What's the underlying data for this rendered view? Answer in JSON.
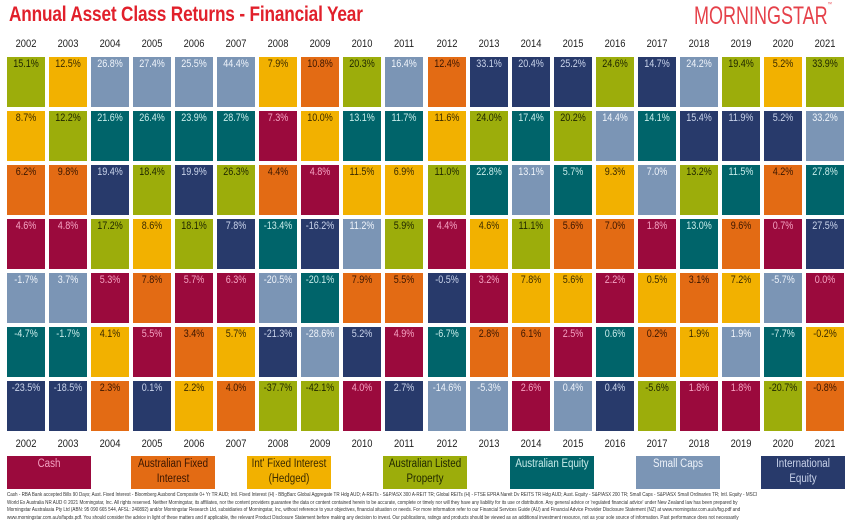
{
  "header": {
    "title": "Annual Asset Class Returns - Financial Year",
    "logo": "MORNINGSTAR"
  },
  "classes": {
    "C": {
      "label": "Cash",
      "color": "#9b0a3d",
      "text": "#f5a3c3"
    },
    "AFI": {
      "label": "Australian Fixed Interest",
      "color": "#e36b14",
      "text": "#3a1600"
    },
    "IFI": {
      "label": "Int' Fixed Interest (Hedged)",
      "color": "#f2b100",
      "text": "#3a2a00"
    },
    "ALP": {
      "label": "Australian Listed Property",
      "color": "#9cad0b",
      "text": "#1f2600"
    },
    "AE": {
      "label": "Australian Equity",
      "color": "#00646a",
      "text": "#c8ecea"
    },
    "SC": {
      "label": "Small Caps",
      "color": "#7b95b5",
      "text": "#eef3fa"
    },
    "IE": {
      "label": "International Equity",
      "color": "#283a6b",
      "text": "#c9d3ea"
    }
  },
  "legend_order": [
    "C",
    "AFI",
    "IFI",
    "ALP",
    "AE",
    "SC",
    "IE"
  ],
  "legend_lines": {
    "C": [
      "Cash"
    ],
    "AFI": [
      "Australian Fixed",
      "Interest"
    ],
    "IFI": [
      "Int' Fixed Interest",
      "(Hedged)"
    ],
    "ALP": [
      "Australian Listed",
      "Property"
    ],
    "AE": [
      "Australian Equity"
    ],
    "SC": [
      "Small Caps"
    ],
    "IE": [
      "International",
      "Equity"
    ]
  },
  "chart_data": {
    "type": "table",
    "title": "Annual Asset Class Returns - Financial Year",
    "years": [
      "2002",
      "2003",
      "2004",
      "2005",
      "2006",
      "2007",
      "2008",
      "2009",
      "2010",
      "2011",
      "2012",
      "2013",
      "2014",
      "2015",
      "2016",
      "2017",
      "2018",
      "2019",
      "2020",
      "2021"
    ],
    "columns": [
      [
        [
          "15.1%",
          "ALP"
        ],
        [
          "8.7%",
          "IFI"
        ],
        [
          "6.2%",
          "AFI"
        ],
        [
          "4.6%",
          "C"
        ],
        [
          "-1.7%",
          "SC"
        ],
        [
          "-4.7%",
          "AE"
        ],
        [
          "-23.5%",
          "IE"
        ]
      ],
      [
        [
          "12.5%",
          "IFI"
        ],
        [
          "12.2%",
          "ALP"
        ],
        [
          "9.8%",
          "AFI"
        ],
        [
          "4.8%",
          "C"
        ],
        [
          "3.7%",
          "SC"
        ],
        [
          "-1.7%",
          "AE"
        ],
        [
          "-18.5%",
          "IE"
        ]
      ],
      [
        [
          "26.8%",
          "SC"
        ],
        [
          "21.6%",
          "AE"
        ],
        [
          "19.4%",
          "IE"
        ],
        [
          "17.2%",
          "ALP"
        ],
        [
          "5.3%",
          "C"
        ],
        [
          "4.1%",
          "IFI"
        ],
        [
          "2.3%",
          "AFI"
        ]
      ],
      [
        [
          "27.4%",
          "SC"
        ],
        [
          "26.4%",
          "AE"
        ],
        [
          "18.4%",
          "ALP"
        ],
        [
          "8.6%",
          "IFI"
        ],
        [
          "7.8%",
          "AFI"
        ],
        [
          "5.5%",
          "C"
        ],
        [
          "0.1%",
          "IE"
        ]
      ],
      [
        [
          "25.5%",
          "SC"
        ],
        [
          "23.9%",
          "AE"
        ],
        [
          "19.9%",
          "IE"
        ],
        [
          "18.1%",
          "ALP"
        ],
        [
          "5.7%",
          "C"
        ],
        [
          "3.4%",
          "AFI"
        ],
        [
          "2.2%",
          "IFI"
        ]
      ],
      [
        [
          "44.4%",
          "SC"
        ],
        [
          "28.7%",
          "AE"
        ],
        [
          "26.3%",
          "ALP"
        ],
        [
          "7.8%",
          "IE"
        ],
        [
          "6.3%",
          "C"
        ],
        [
          "5.7%",
          "IFI"
        ],
        [
          "4.0%",
          "AFI"
        ]
      ],
      [
        [
          "7.9%",
          "IFI"
        ],
        [
          "7.3%",
          "C"
        ],
        [
          "4.4%",
          "AFI"
        ],
        [
          "-13.4%",
          "AE"
        ],
        [
          "-20.5%",
          "SC"
        ],
        [
          "-21.3%",
          "IE"
        ],
        [
          "-37.7%",
          "ALP"
        ]
      ],
      [
        [
          "10.8%",
          "AFI"
        ],
        [
          "10.0%",
          "IFI"
        ],
        [
          "4.8%",
          "C"
        ],
        [
          "-16.2%",
          "IE"
        ],
        [
          "-20.1%",
          "AE"
        ],
        [
          "-28.6%",
          "SC"
        ],
        [
          "-42.1%",
          "ALP"
        ]
      ],
      [
        [
          "20.3%",
          "ALP"
        ],
        [
          "13.1%",
          "AE"
        ],
        [
          "11.5%",
          "IFI"
        ],
        [
          "11.2%",
          "SC"
        ],
        [
          "7.9%",
          "AFI"
        ],
        [
          "5.2%",
          "IE"
        ],
        [
          "4.0%",
          "C"
        ]
      ],
      [
        [
          "16.4%",
          "SC"
        ],
        [
          "11.7%",
          "AE"
        ],
        [
          "6.9%",
          "IFI"
        ],
        [
          "5.9%",
          "ALP"
        ],
        [
          "5.5%",
          "AFI"
        ],
        [
          "4.9%",
          "C"
        ],
        [
          "2.7%",
          "IE"
        ]
      ],
      [
        [
          "12.4%",
          "AFI"
        ],
        [
          "11.6%",
          "IFI"
        ],
        [
          "11.0%",
          "ALP"
        ],
        [
          "4.4%",
          "C"
        ],
        [
          "-0.5%",
          "IE"
        ],
        [
          "-6.7%",
          "AE"
        ],
        [
          "-14.6%",
          "SC"
        ]
      ],
      [
        [
          "33.1%",
          "IE"
        ],
        [
          "24.0%",
          "ALP"
        ],
        [
          "22.8%",
          "AE"
        ],
        [
          "4.6%",
          "IFI"
        ],
        [
          "3.2%",
          "C"
        ],
        [
          "2.8%",
          "AFI"
        ],
        [
          "-5.3%",
          "SC"
        ]
      ],
      [
        [
          "20.4%",
          "IE"
        ],
        [
          "17.4%",
          "AE"
        ],
        [
          "13.1%",
          "SC"
        ],
        [
          "11.1%",
          "ALP"
        ],
        [
          "7.8%",
          "IFI"
        ],
        [
          "6.1%",
          "AFI"
        ],
        [
          "2.6%",
          "C"
        ]
      ],
      [
        [
          "25.2%",
          "IE"
        ],
        [
          "20.2%",
          "ALP"
        ],
        [
          "5.7%",
          "AE"
        ],
        [
          "5.6%",
          "AFI"
        ],
        [
          "5.6%",
          "IFI"
        ],
        [
          "2.5%",
          "C"
        ],
        [
          "0.4%",
          "SC"
        ]
      ],
      [
        [
          "24.6%",
          "ALP"
        ],
        [
          "14.4%",
          "SC"
        ],
        [
          "9.3%",
          "IFI"
        ],
        [
          "7.0%",
          "AFI"
        ],
        [
          "2.2%",
          "C"
        ],
        [
          "0.6%",
          "AE"
        ],
        [
          "0.4%",
          "IE"
        ]
      ],
      [
        [
          "14.7%",
          "IE"
        ],
        [
          "14.1%",
          "AE"
        ],
        [
          "7.0%",
          "SC"
        ],
        [
          "1.8%",
          "C"
        ],
        [
          "0.5%",
          "IFI"
        ],
        [
          "0.2%",
          "AFI"
        ],
        [
          "-5.6%",
          "ALP"
        ]
      ],
      [
        [
          "24.2%",
          "SC"
        ],
        [
          "15.4%",
          "IE"
        ],
        [
          "13.2%",
          "ALP"
        ],
        [
          "13.0%",
          "AE"
        ],
        [
          "3.1%",
          "AFI"
        ],
        [
          "1.9%",
          "IFI"
        ],
        [
          "1.8%",
          "C"
        ]
      ],
      [
        [
          "19.4%",
          "ALP"
        ],
        [
          "11.9%",
          "IE"
        ],
        [
          "11.5%",
          "AE"
        ],
        [
          "9.6%",
          "AFI"
        ],
        [
          "7.2%",
          "IFI"
        ],
        [
          "1.9%",
          "SC"
        ],
        [
          "1.8%",
          "C"
        ]
      ],
      [
        [
          "5.2%",
          "IFI"
        ],
        [
          "5.2%",
          "IE"
        ],
        [
          "4.2%",
          "AFI"
        ],
        [
          "0.7%",
          "C"
        ],
        [
          "-5.7%",
          "SC"
        ],
        [
          "-7.7%",
          "AE"
        ],
        [
          "-20.7%",
          "ALP"
        ]
      ],
      [
        [
          "33.9%",
          "ALP"
        ],
        [
          "33.2%",
          "SC"
        ],
        [
          "27.8%",
          "AE"
        ],
        [
          "27.5%",
          "IE"
        ],
        [
          "0.0%",
          "C"
        ],
        [
          "-0.2%",
          "IFI"
        ],
        [
          "-0.8%",
          "AFI"
        ]
      ]
    ]
  },
  "footer": [
    "Cash - RBA Bank accepted Bills 90 Days; Aust. Fixed Interest - Bloomberg Ausbond Composite 0+ Yr TR AUD; Intl. Fixed Interest (H) - BBgBarc Global Aggregate TR Hdg AUD; A-REITs - S&P/ASX 300 A-REIT TR; Global REITs (H) - FTSE EPRA Nareit Dv REITS TR Hdg AUD; Aust. Equity - S&P/ASX 200 TR; Small Caps - S&P/ASX Small Ordinaries TR; Intl. Equity - MSCI",
    "World Ex Australia NR AUD © 2021 Morningstar, Inc. All rights reserved. Neither Morningstar, its affiliates, nor the content providers guarantee the data or content contained herein to be accurate, complete or timely nor will they have any liability for its use or distribution. Any general advice or 'regulated financial advice' under New Zealand law has been prepared by",
    "Morningstar Australasia Pty Ltd (ABN: 95 090 665 544, AFSL: 240892) and/or Morningstar Research Ltd, subsidiaries of Morningstar, Inc, without reference to your objectives, financial situation or needs. For more information refer to our Financial Services Guide (AU) and Financial Advice Provider Disclosure Statement (NZ) at www.morningstar.com.au/s/fsg.pdf and",
    "www.morningstar.com.au/s/fapds.pdf. You should consider the advice in light of these matters and if applicable, the relevant Product Disclosure Statement before making any decision to invest. Our publications, ratings and products should be viewed as an additional investment resource, not as your sole source of information. Past performance does not necessarily"
  ]
}
